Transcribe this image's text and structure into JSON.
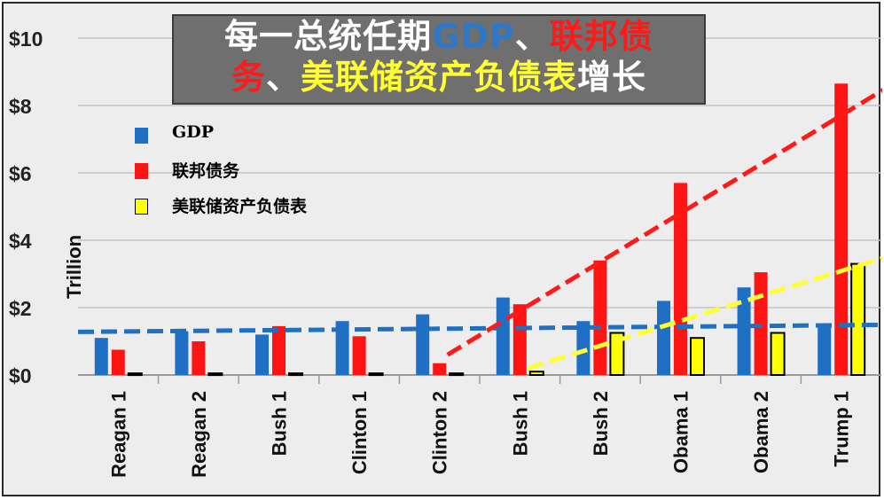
{
  "title": {
    "line1": [
      {
        "text": "每一总统任期",
        "color": "#ffffff"
      },
      {
        "text": "GDP",
        "color": "#2f78c8"
      },
      {
        "text": "、",
        "color": "#ffffff"
      },
      {
        "text": "联邦债",
        "color": "#ff1a1a"
      }
    ],
    "line2": [
      {
        "text": "务",
        "color": "#ff1a1a"
      },
      {
        "text": "、",
        "color": "#ffffff"
      },
      {
        "text": "美联储资产负债表",
        "color": "#ffff33"
      },
      {
        "text": "增长",
        "color": "#ffffff"
      }
    ]
  },
  "colors": {
    "gdp": "#1f6fc5",
    "debt": "#ff1414",
    "fed": "#ffff00",
    "fed_border": "#000000",
    "gdp_arrow": "#2070c0",
    "debt_arrow": "#ff1a1a",
    "fed_arrow": "#ffff33"
  },
  "chart_data": {
    "type": "bar",
    "ylabel": "Trillion",
    "ylim": [
      0,
      10
    ],
    "yticks": [
      "$0",
      "$2",
      "$4",
      "$6",
      "$8",
      "$10"
    ],
    "ytick_values": [
      0,
      2,
      4,
      6,
      8,
      10
    ],
    "grid": true,
    "legend_position": "top-left",
    "categories": [
      "Reagan 1",
      "Reagan 2",
      "Bush 1",
      "Clinton 1",
      "Clinton 2",
      "Bush 1",
      "Bush 2",
      "Obama 1",
      "Obama 2",
      "Trump 1"
    ],
    "series": [
      {
        "name": "GDP",
        "key": "gdp",
        "values": [
          1.1,
          1.3,
          1.2,
          1.6,
          1.8,
          2.3,
          1.6,
          2.2,
          2.6,
          1.5
        ]
      },
      {
        "name": "联邦债务",
        "key": "debt",
        "values": [
          0.75,
          1.0,
          1.45,
          1.15,
          0.35,
          2.1,
          3.4,
          5.7,
          3.05,
          8.65
        ]
      },
      {
        "name": "美联储资产负债表",
        "key": "fed",
        "values": [
          0.05,
          0.05,
          0.05,
          0.05,
          0.05,
          0.1,
          1.25,
          1.1,
          1.25,
          3.3
        ]
      }
    ],
    "trend_arrows": [
      {
        "series": "gdp",
        "from": {
          "x": -0.5,
          "y": 1.28
        },
        "to": {
          "x": 10.1,
          "y": 1.5
        }
      },
      {
        "series": "debt",
        "from": {
          "x": 4.1,
          "y": 0.6
        },
        "to": {
          "x": 10.1,
          "y": 9.3
        }
      },
      {
        "series": "fed",
        "from": {
          "x": 5.1,
          "y": 0.2
        },
        "to": {
          "x": 10.1,
          "y": 3.9
        }
      }
    ]
  }
}
